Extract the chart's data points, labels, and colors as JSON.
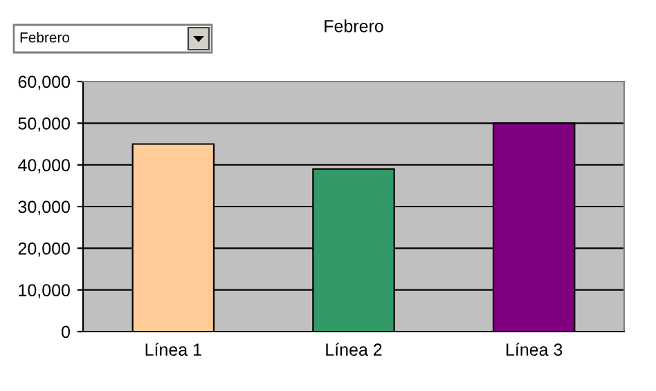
{
  "chart_data": {
    "type": "bar",
    "title": "Febrero",
    "annotations": [
      "Febrero"
    ],
    "categories": [
      "Línea 1",
      "Línea 2",
      "Línea 3"
    ],
    "values": [
      45000,
      39000,
      50000
    ],
    "colors": [
      "#ffcc99",
      "#339966",
      "#800080"
    ],
    "ylim": [
      0,
      60000
    ],
    "yticks": [
      {
        "value": 0,
        "label": "0"
      },
      {
        "value": 10000,
        "label": "10,000"
      },
      {
        "value": 20000,
        "label": "20,000"
      },
      {
        "value": 30000,
        "label": "30,000"
      },
      {
        "value": 40000,
        "label": "40,000"
      },
      {
        "value": 50000,
        "label": "50,000"
      },
      {
        "value": 60000,
        "label": "60,000"
      }
    ],
    "grid": "y",
    "legend": false
  }
}
